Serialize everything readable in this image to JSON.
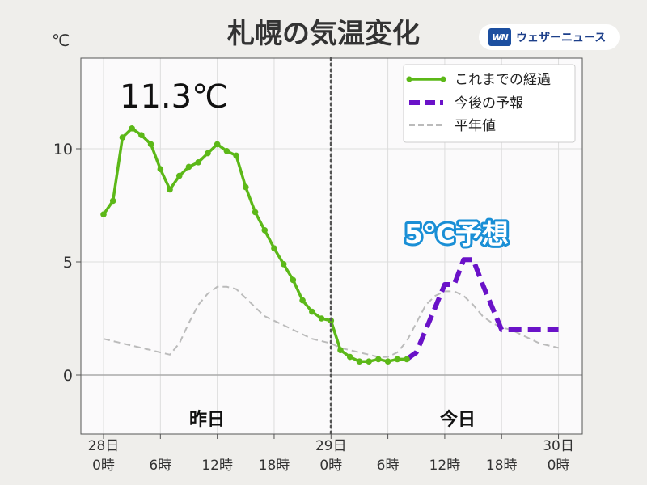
{
  "header": {
    "title": "札幌の気温変化",
    "y_unit": "℃",
    "brand_logo": "WN",
    "brand_name": "ウェザーニュース"
  },
  "annotations": {
    "current_temp": "11.3℃",
    "forecast_callout": "5℃予想",
    "day_yesterday": "昨日",
    "day_today": "今日"
  },
  "colors": {
    "observed": "#5cb818",
    "forecast": "#6a12c8",
    "normal": "#bbbbbb",
    "divider": "#555555",
    "plot_bg": "#fbfafb",
    "grid": "#dddddd"
  },
  "chart_data": {
    "type": "line",
    "x_unit": "hours since 28日 0時",
    "xlim": [
      -2,
      50
    ],
    "ylim": [
      -2.5,
      14
    ],
    "y_ticks": [
      0,
      5,
      10
    ],
    "x_ticks": [
      {
        "x": 0,
        "line1": "28日",
        "line2": "0時"
      },
      {
        "x": 6,
        "line1": "",
        "line2": "6時"
      },
      {
        "x": 12,
        "line1": "",
        "line2": "12時"
      },
      {
        "x": 18,
        "line1": "",
        "line2": "18時"
      },
      {
        "x": 24,
        "line1": "29日",
        "line2": "0時"
      },
      {
        "x": 30,
        "line1": "",
        "line2": "6時"
      },
      {
        "x": 36,
        "line1": "",
        "line2": "12時"
      },
      {
        "x": 42,
        "line1": "",
        "line2": "18時"
      },
      {
        "x": 48,
        "line1": "30日",
        "line2": "0時"
      }
    ],
    "legend_position": "top-right",
    "divider_x": 24,
    "series": [
      {
        "name": "これまでの経過",
        "style": "solid-markers",
        "x": [
          0,
          1,
          2,
          3,
          4,
          5,
          6,
          7,
          8,
          9,
          10,
          11,
          12,
          13,
          14,
          15,
          16,
          17,
          18,
          19,
          20,
          21,
          22,
          23,
          24,
          25,
          26,
          27,
          28,
          29,
          30,
          31,
          32
        ],
        "values": [
          7.1,
          7.7,
          10.5,
          10.9,
          10.6,
          10.2,
          9.1,
          8.2,
          8.8,
          9.2,
          9.4,
          9.8,
          10.2,
          9.9,
          9.7,
          8.3,
          7.2,
          6.4,
          5.6,
          4.9,
          4.2,
          3.3,
          2.8,
          2.5,
          2.4,
          1.1,
          0.8,
          0.6,
          0.6,
          0.7,
          0.6,
          0.7,
          0.7
        ]
      },
      {
        "name": "今後の予報",
        "style": "dashed-thick",
        "x": [
          32,
          33,
          34,
          35,
          36,
          37,
          38,
          39,
          40,
          41,
          42,
          43,
          44,
          45,
          46,
          47,
          48
        ],
        "values": [
          0.7,
          1.0,
          2.0,
          3.0,
          4.0,
          4.0,
          5.1,
          5.1,
          4.0,
          3.0,
          2.0,
          2.0,
          2.0,
          2.0,
          2.0,
          2.0,
          2.0
        ]
      },
      {
        "name": "平年値",
        "style": "dashed-thin",
        "x": [
          0,
          1,
          2,
          3,
          4,
          5,
          6,
          7,
          8,
          9,
          10,
          11,
          12,
          13,
          14,
          15,
          16,
          17,
          18,
          19,
          20,
          21,
          22,
          23,
          24,
          25,
          26,
          27,
          28,
          29,
          30,
          31,
          32,
          33,
          34,
          35,
          36,
          37,
          38,
          39,
          40,
          41,
          42,
          43,
          44,
          45,
          46,
          47,
          48
        ],
        "values": [
          1.6,
          1.5,
          1.4,
          1.3,
          1.2,
          1.1,
          1.0,
          0.9,
          1.4,
          2.3,
          3.1,
          3.6,
          3.9,
          3.9,
          3.8,
          3.4,
          3.0,
          2.6,
          2.4,
          2.2,
          2.0,
          1.8,
          1.6,
          1.5,
          1.4,
          1.2,
          1.1,
          1.0,
          0.9,
          0.8,
          0.8,
          1.0,
          1.5,
          2.3,
          3.1,
          3.5,
          3.7,
          3.7,
          3.5,
          3.1,
          2.6,
          2.3,
          2.1,
          2.0,
          1.8,
          1.6,
          1.4,
          1.3,
          1.2
        ]
      }
    ]
  }
}
